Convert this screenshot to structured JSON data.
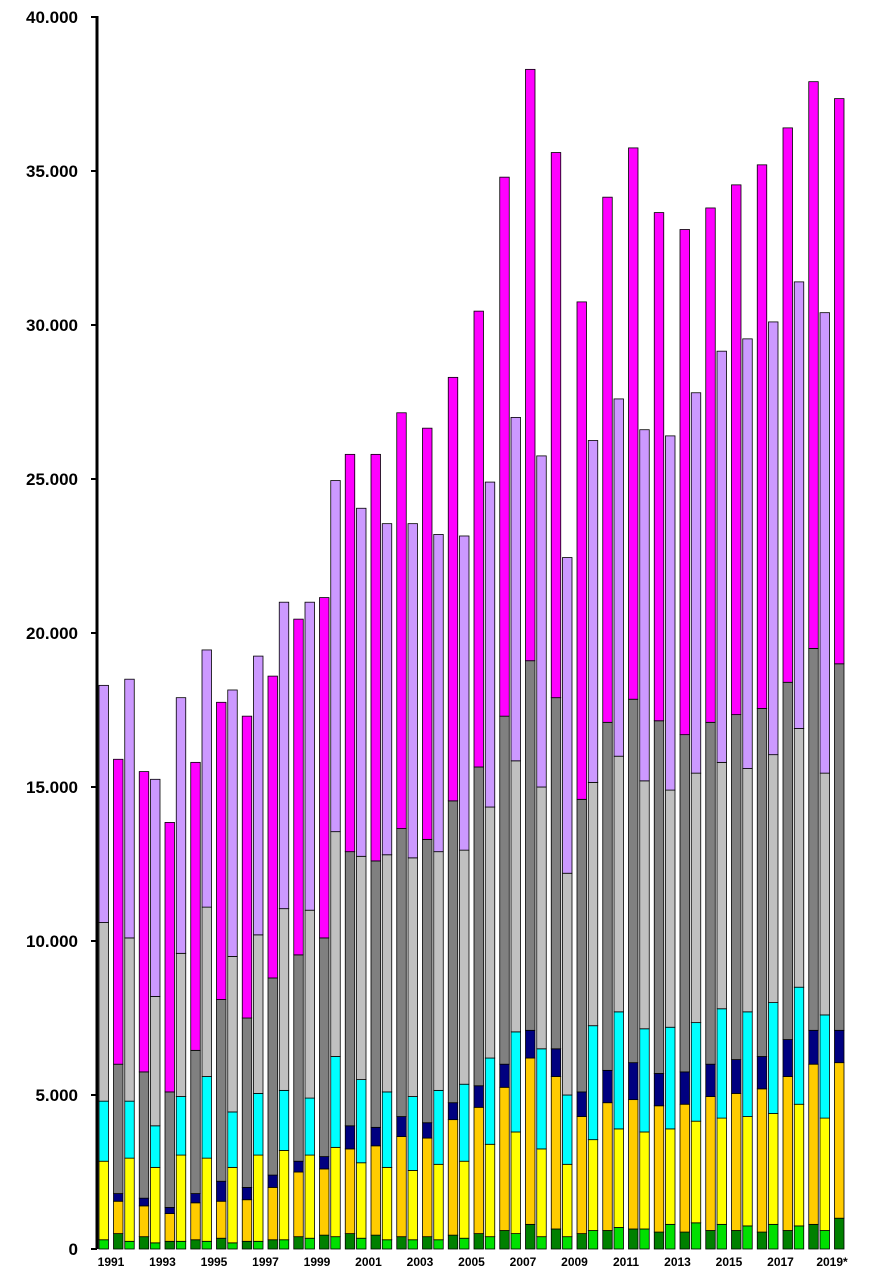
{
  "chart_data": {
    "type": "bar",
    "stacked": true,
    "grouped_pairs": true,
    "grid": false,
    "legend": "none",
    "ylim": [
      0,
      40000
    ],
    "y_ticks": [
      "0",
      "5.000",
      "10.000",
      "15.000",
      "20.000",
      "25.000",
      "30.000",
      "35.000",
      "40.000"
    ],
    "y_tick_values": [
      0,
      5000,
      10000,
      15000,
      20000,
      25000,
      30000,
      35000,
      40000
    ],
    "x_tick_labels": [
      "1991",
      "1993",
      "1995",
      "1997",
      "1999",
      "2001",
      "2003",
      "2005",
      "2007",
      "2009",
      "2011",
      "2013",
      "2015",
      "2017",
      "2019*"
    ],
    "years": [
      "1991",
      "1992",
      "1993",
      "1994",
      "1995",
      "1996",
      "1997",
      "1998",
      "1999",
      "2000",
      "2001",
      "2002",
      "2003",
      "2004",
      "2005",
      "2006",
      "2007",
      "2008",
      "2009",
      "2010",
      "2011",
      "2012",
      "2013",
      "2014",
      "2015",
      "2016",
      "2017",
      "2018",
      "2019*"
    ],
    "series_a_colors": [
      "#00e000",
      "#ffff00",
      "#00ffff",
      "#c0c0c0",
      "#cc99ff"
    ],
    "series_b_colors": [
      "#008000",
      "#ffcc00",
      "#000080",
      "#808080",
      "#ff00ff"
    ],
    "bars_a": [
      [
        300,
        2550,
        1950,
        5800,
        7700
      ],
      [
        250,
        2700,
        1850,
        5300,
        8400
      ],
      [
        200,
        2450,
        1350,
        4200,
        7050
      ],
      [
        250,
        2800,
        1900,
        4650,
        8300
      ],
      [
        250,
        2700,
        2650,
        5500,
        8350
      ],
      [
        200,
        2450,
        1800,
        5050,
        8650
      ],
      [
        250,
        2800,
        2000,
        5150,
        9050
      ],
      [
        300,
        2900,
        1950,
        5900,
        9950
      ],
      [
        350,
        2700,
        1850,
        6100,
        10000
      ],
      [
        400,
        2900,
        2950,
        7300,
        11400
      ],
      [
        350,
        2450,
        2700,
        7250,
        11300
      ],
      [
        300,
        2350,
        2450,
        7700,
        10750
      ],
      [
        300,
        2250,
        2400,
        7750,
        10850
      ],
      [
        300,
        2450,
        2400,
        7750,
        10300
      ],
      [
        350,
        2500,
        2500,
        7600,
        10200
      ],
      [
        400,
        3000,
        2800,
        8150,
        10550
      ],
      [
        500,
        3300,
        3250,
        8800,
        11150
      ],
      [
        400,
        2850,
        3250,
        8500,
        10750
      ],
      [
        400,
        2350,
        2250,
        7200,
        10250
      ],
      [
        600,
        2950,
        3700,
        7900,
        11100
      ],
      [
        700,
        3200,
        3800,
        8300,
        11600
      ],
      [
        650,
        3150,
        3350,
        8050,
        11400
      ],
      [
        800,
        3100,
        3300,
        7700,
        11500
      ],
      [
        850,
        3300,
        3200,
        8100,
        12350
      ],
      [
        800,
        3450,
        3550,
        8000,
        13350
      ],
      [
        750,
        3550,
        3400,
        7900,
        13950
      ],
      [
        800,
        3600,
        3600,
        8050,
        14050
      ],
      [
        750,
        3950,
        3800,
        8400,
        14500
      ],
      [
        600,
        3650,
        3350,
        7850,
        14950
      ]
    ],
    "bars_b": [
      [
        500,
        1050,
        250,
        4200,
        9900
      ],
      [
        400,
        1000,
        250,
        4100,
        9750
      ],
      [
        250,
        900,
        200,
        3750,
        8750
      ],
      [
        300,
        1200,
        300,
        4650,
        9350
      ],
      [
        350,
        1200,
        650,
        5900,
        9650
      ],
      [
        250,
        1350,
        400,
        5500,
        9800
      ],
      [
        300,
        1700,
        400,
        6400,
        9800
      ],
      [
        400,
        2100,
        350,
        6700,
        10900
      ],
      [
        450,
        2150,
        400,
        7100,
        11050
      ],
      [
        500,
        2750,
        750,
        8900,
        12900
      ],
      [
        450,
        2900,
        600,
        8650,
        13200
      ],
      [
        400,
        3250,
        650,
        9350,
        13500
      ],
      [
        400,
        3200,
        500,
        9200,
        13350
      ],
      [
        450,
        3750,
        550,
        9800,
        13750
      ],
      [
        500,
        4100,
        700,
        10350,
        14800
      ],
      [
        600,
        4650,
        750,
        11300,
        17500
      ],
      [
        800,
        5400,
        900,
        12000,
        19200
      ],
      [
        650,
        4950,
        900,
        11400,
        17700
      ],
      [
        500,
        3800,
        800,
        9500,
        16150
      ],
      [
        600,
        4150,
        1050,
        11300,
        17050
      ],
      [
        650,
        4200,
        1200,
        11800,
        17900
      ],
      [
        550,
        4100,
        1050,
        11450,
        16500
      ],
      [
        550,
        4150,
        1050,
        10950,
        16400
      ],
      [
        600,
        4350,
        1050,
        11100,
        16700
      ],
      [
        600,
        4450,
        1100,
        11200,
        17200
      ],
      [
        550,
        4650,
        1050,
        11300,
        17650
      ],
      [
        600,
        5000,
        1200,
        11600,
        18000
      ],
      [
        800,
        5200,
        1100,
        12400,
        18400
      ],
      [
        1000,
        5050,
        1050,
        11900,
        18350
      ]
    ]
  }
}
